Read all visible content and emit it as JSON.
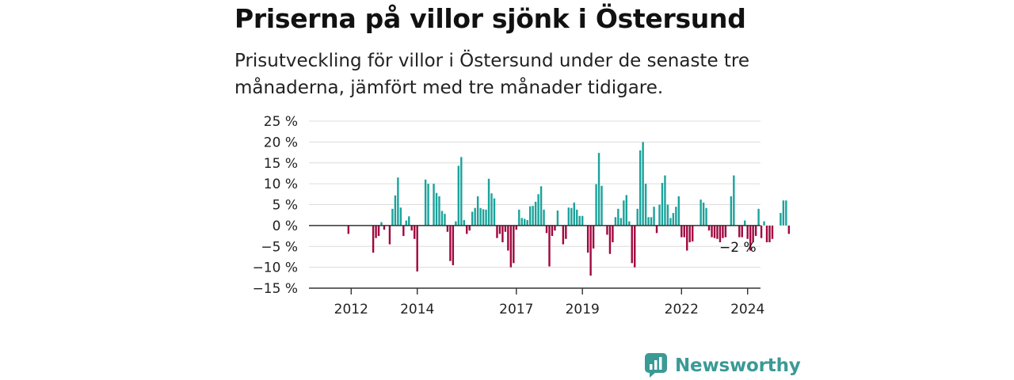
{
  "title": "Priserna på villor sjönk i Östersund",
  "subtitle": "Prisutveckling för villor i Östersund under de senaste tre månaderna, jämfört med tre månader tidigare.",
  "brand": "Newsworthy",
  "colors": {
    "positive": "#1aa39c",
    "negative": "#a0073f",
    "brand": "#3a9a96",
    "grid": "#dcdcdc",
    "axis": "#333333"
  },
  "chart_data": {
    "type": "bar",
    "ylim": [
      -15,
      25
    ],
    "yticks": [
      25,
      20,
      15,
      10,
      5,
      0,
      -5,
      -10,
      -15
    ],
    "ytick_labels": [
      "25 %",
      "20 %",
      "15 %",
      "10 %",
      "5 %",
      "0 %",
      "−5 %",
      "−10 %",
      "−15 %"
    ],
    "xticks": [
      "2012",
      "2014",
      "2017",
      "2019",
      "2022",
      "2024"
    ],
    "xtick_positions": [
      2012.0,
      2014.0,
      2017.0,
      2019.0,
      2022.0,
      2024.0
    ],
    "start": "2011-05",
    "frequency": "monthly",
    "annotation": "−2 %",
    "values": [
      0,
      0,
      0,
      0,
      0,
      0,
      0,
      -2,
      0,
      0,
      0,
      0,
      0,
      0,
      0,
      0,
      -6.5,
      -3,
      -2.5,
      0.8,
      -1,
      0,
      -4.5,
      4,
      7.2,
      11.5,
      4.3,
      -2.5,
      1.2,
      2.2,
      -1.2,
      -3.2,
      -11,
      0,
      0,
      11,
      10,
      0,
      10,
      7.8,
      7,
      3.5,
      2.8,
      -1.5,
      -8.5,
      -9.5,
      1,
      14.3,
      16.4,
      1.3,
      -2,
      -1.2,
      3.3,
      4.2,
      7,
      4.2,
      3.9,
      3.8,
      11.2,
      7.7,
      6.5,
      -3,
      -2,
      -4,
      -1.5,
      -6,
      -10,
      -9,
      -1,
      3.8,
      1.8,
      1.6,
      1.3,
      4.6,
      4.7,
      5.7,
      7.5,
      9.4,
      3.8,
      -1.8,
      -9.8,
      -2.5,
      -1.2,
      3.6,
      0,
      -4.5,
      -3.2,
      4.3,
      4.2,
      5.5,
      3.8,
      2.3,
      2.3,
      0,
      -6.5,
      -12,
      -5.5,
      9.9,
      17.4,
      9.5,
      0,
      -2.2,
      -6.8,
      -4,
      2,
      4,
      1.8,
      6,
      7.3,
      1,
      -9,
      -10,
      4,
      18,
      20,
      10,
      2,
      2,
      4.5,
      -1.8,
      5,
      10.2,
      12,
      5,
      1.8,
      3,
      4.5,
      7,
      -2.8,
      -2.8,
      -6,
      -4,
      -3.8,
      0,
      0,
      6.2,
      5.5,
      4.2,
      -1.2,
      -2.8,
      -3,
      -3.2,
      -4,
      -3,
      -2.8,
      0,
      7,
      12,
      0,
      -2.8,
      -2.8,
      1.2,
      -3.2,
      -6,
      -4,
      -2.5,
      4,
      -3,
      1,
      -4,
      -4,
      -3.2,
      0,
      0,
      3,
      6,
      6,
      -2
    ]
  }
}
